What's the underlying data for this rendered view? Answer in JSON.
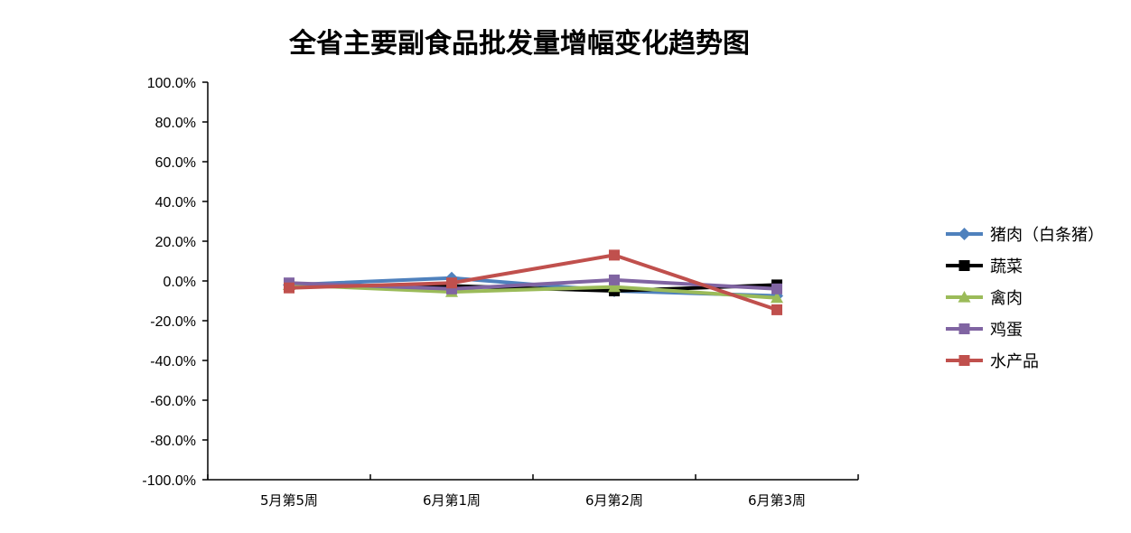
{
  "chart_data": {
    "type": "line",
    "title": "全省主要副食品批发量增幅变化趋势图",
    "xlabel": "",
    "ylabel": "",
    "categories": [
      "5月第5周",
      "6月第1周",
      "6月第2周",
      "6月第3周"
    ],
    "ylim": [
      -100,
      100
    ],
    "yticks": [
      "100.0%",
      "80.0%",
      "60.0%",
      "40.0%",
      "20.0%",
      "0.0%",
      "-20.0%",
      "-40.0%",
      "-60.0%",
      "-80.0%",
      "-100.0%"
    ],
    "ytick_values": [
      100,
      80,
      60,
      40,
      20,
      0,
      -20,
      -40,
      -60,
      -80,
      -100
    ],
    "grid": false,
    "legend_position": "right",
    "series": [
      {
        "name": "猪肉（白条猪）",
        "color": "#4F81BD",
        "marker": "diamond",
        "values": [
          -2.0,
          1.5,
          -5.0,
          -7.5
        ]
      },
      {
        "name": "蔬菜",
        "color": "#000000",
        "marker": "square",
        "values": [
          -2.5,
          -2.5,
          -5.0,
          -2.0
        ]
      },
      {
        "name": "禽肉",
        "color": "#9BBB59",
        "marker": "triangle",
        "values": [
          -2.0,
          -5.5,
          -3.0,
          -8.5
        ]
      },
      {
        "name": "鸡蛋",
        "color": "#8064A2",
        "marker": "square",
        "values": [
          -1.0,
          -4.0,
          0.5,
          -4.0
        ]
      },
      {
        "name": "水产品",
        "color": "#C0504D",
        "marker": "square",
        "values": [
          -3.5,
          -1.0,
          13.0,
          -14.5
        ]
      }
    ]
  }
}
